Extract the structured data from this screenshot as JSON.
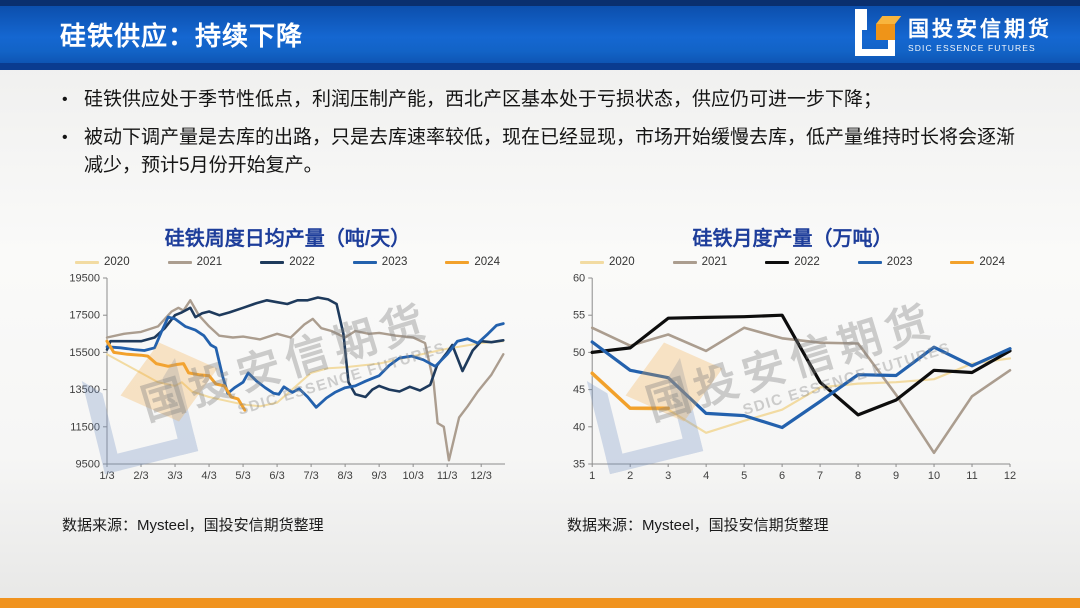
{
  "header": {
    "title": "硅铁供应：持续下降",
    "brand_cn": "国投安信期货",
    "brand_en": "SDIC ESSENCE FUTURES",
    "accent_blue": "#1567d1",
    "accent_orange": "#f0931f"
  },
  "content": {
    "bullets": [
      "硅铁供应处于季节性低点，利润压制产能，西北产区基本处于亏损状态，供应仍可进一步下降；",
      "被动下调产量是去库的出路，只是去库速率较低，现在已经显现，市场开始缓慢去库，低产量维持时长将会逐渐减少，预计5月份开始复产。"
    ],
    "bullet_glyph": "•"
  },
  "watermark": {
    "cn": "国投安信期货",
    "en": "SDIC ESSENCE FUTURES"
  },
  "chart_data": [
    {
      "type": "line",
      "title": "硅铁周度日均产量（吨/天）",
      "source": "数据来源：Mysteel，国投安信期货整理",
      "xlabel": "",
      "ylabel": "",
      "ylim": [
        9500,
        19500
      ],
      "ytick_step": 2000,
      "xlim": [
        1,
        12.7
      ],
      "xticks": [
        1,
        2,
        3,
        4,
        5,
        6,
        7,
        8,
        9,
        10,
        11,
        12
      ],
      "xtick_labels": [
        "1/3",
        "2/3",
        "3/3",
        "4/3",
        "5/3",
        "6/3",
        "7/3",
        "8/3",
        "9/3",
        "10/3",
        "11/3",
        "12/3"
      ],
      "grid": false,
      "legend_position": "top",
      "series": [
        {
          "name": "2020",
          "color": "#f2dba2",
          "width": 2,
          "points": [
            [
              1,
              15400
            ],
            [
              1.5,
              14900
            ],
            [
              2,
              14400
            ],
            [
              2.5,
              13900
            ],
            [
              3,
              13700
            ],
            [
              3.2,
              13900
            ],
            [
              3.5,
              13400
            ],
            [
              4,
              13100
            ],
            [
              4.5,
              12900
            ],
            [
              5,
              12700
            ],
            [
              5.5,
              12600
            ],
            [
              6,
              12800
            ],
            [
              6.5,
              13600
            ],
            [
              7,
              14400
            ],
            [
              7.5,
              14650
            ],
            [
              8,
              14700
            ],
            [
              8.5,
              14800
            ],
            [
              9,
              14900
            ],
            [
              9.5,
              15100
            ],
            [
              10,
              15300
            ],
            [
              10.5,
              15500
            ],
            [
              11,
              15700
            ],
            [
              11.5,
              15850
            ],
            [
              12,
              16000
            ],
            [
              12.65,
              16100
            ]
          ]
        },
        {
          "name": "2021",
          "color": "#ab9d8f",
          "width": 2.4,
          "points": [
            [
              1,
              16300
            ],
            [
              1.5,
              16500
            ],
            [
              2,
              16600
            ],
            [
              2.5,
              16900
            ],
            [
              2.9,
              17700
            ],
            [
              3.1,
              17900
            ],
            [
              3.25,
              17750
            ],
            [
              3.45,
              18300
            ],
            [
              3.7,
              17500
            ],
            [
              4,
              16900
            ],
            [
              4.3,
              16400
            ],
            [
              4.7,
              16300
            ],
            [
              5,
              16350
            ],
            [
              5.5,
              16200
            ],
            [
              6,
              16500
            ],
            [
              6.4,
              16300
            ],
            [
              6.8,
              17000
            ],
            [
              7.05,
              17300
            ],
            [
              7.3,
              16800
            ],
            [
              7.6,
              16650
            ],
            [
              8,
              16300
            ],
            [
              8.3,
              16650
            ],
            [
              8.7,
              16500
            ],
            [
              9,
              16550
            ],
            [
              9.5,
              16400
            ],
            [
              10,
              16300
            ],
            [
              10.35,
              16000
            ],
            [
              10.6,
              13900
            ],
            [
              10.72,
              11700
            ],
            [
              10.9,
              11500
            ],
            [
              11.05,
              9700
            ],
            [
              11.35,
              12000
            ],
            [
              11.6,
              12600
            ],
            [
              11.9,
              13400
            ],
            [
              12.3,
              14300
            ],
            [
              12.65,
              15400
            ]
          ]
        },
        {
          "name": "2022",
          "color": "#1e3a5c",
          "width": 2.6,
          "points": [
            [
              1,
              15650
            ],
            [
              1.1,
              16100
            ],
            [
              1.6,
              16100
            ],
            [
              2,
              16100
            ],
            [
              2.4,
              16300
            ],
            [
              2.7,
              16800
            ],
            [
              3,
              17500
            ],
            [
              3.2,
              17650
            ],
            [
              3.45,
              17900
            ],
            [
              3.6,
              17400
            ],
            [
              3.8,
              17600
            ],
            [
              4,
              17700
            ],
            [
              4.3,
              17500
            ],
            [
              4.6,
              17650
            ],
            [
              5,
              17900
            ],
            [
              5.4,
              18150
            ],
            [
              5.7,
              18300
            ],
            [
              6,
              18200
            ],
            [
              6.3,
              18100
            ],
            [
              6.6,
              18300
            ],
            [
              6.9,
              18300
            ],
            [
              7.2,
              18450
            ],
            [
              7.5,
              18350
            ],
            [
              7.75,
              18100
            ],
            [
              7.95,
              16500
            ],
            [
              8.1,
              13900
            ],
            [
              8.3,
              13250
            ],
            [
              8.6,
              13100
            ],
            [
              8.8,
              13500
            ],
            [
              9,
              13700
            ],
            [
              9.3,
              13500
            ],
            [
              9.6,
              13400
            ],
            [
              9.9,
              13650
            ],
            [
              10.2,
              13450
            ],
            [
              10.5,
              13750
            ],
            [
              10.7,
              14800
            ],
            [
              11,
              15500
            ],
            [
              11.15,
              15900
            ],
            [
              11.45,
              14500
            ],
            [
              11.75,
              15600
            ],
            [
              12,
              16100
            ],
            [
              12.3,
              16050
            ],
            [
              12.65,
              16150
            ]
          ]
        },
        {
          "name": "2023",
          "color": "#2361ad",
          "width": 2.8,
          "points": [
            [
              1,
              15800
            ],
            [
              1.4,
              15750
            ],
            [
              1.8,
              15650
            ],
            [
              2.1,
              15600
            ],
            [
              2.4,
              15750
            ],
            [
              2.6,
              16600
            ],
            [
              2.8,
              17400
            ],
            [
              3,
              17300
            ],
            [
              3.3,
              16900
            ],
            [
              3.6,
              16700
            ],
            [
              3.85,
              16400
            ],
            [
              4.05,
              15900
            ],
            [
              4.2,
              15750
            ],
            [
              4.4,
              14200
            ],
            [
              4.55,
              13300
            ],
            [
              4.75,
              13600
            ],
            [
              5,
              13900
            ],
            [
              5.15,
              14400
            ],
            [
              5.4,
              13950
            ],
            [
              5.65,
              13600
            ],
            [
              5.9,
              13300
            ],
            [
              6.05,
              13250
            ],
            [
              6.2,
              13650
            ],
            [
              6.45,
              13350
            ],
            [
              6.65,
              13550
            ],
            [
              6.9,
              13100
            ],
            [
              7.15,
              12550
            ],
            [
              7.45,
              13050
            ],
            [
              7.7,
              13350
            ],
            [
              8,
              13600
            ],
            [
              8.3,
              13700
            ],
            [
              8.6,
              13950
            ],
            [
              9,
              14250
            ],
            [
              9.3,
              14800
            ],
            [
              9.6,
              15200
            ],
            [
              9.95,
              15300
            ],
            [
              10.3,
              15100
            ],
            [
              10.65,
              14750
            ],
            [
              11,
              15400
            ],
            [
              11.3,
              16100
            ],
            [
              11.6,
              16230
            ],
            [
              11.9,
              16000
            ],
            [
              12.2,
              16500
            ],
            [
              12.45,
              16950
            ],
            [
              12.65,
              17050
            ]
          ]
        },
        {
          "name": "2024",
          "color": "#f2a12b",
          "width": 3,
          "points": [
            [
              1,
              16100
            ],
            [
              1.2,
              15500
            ],
            [
              1.6,
              15400
            ],
            [
              2,
              15350
            ],
            [
              2.2,
              15300
            ],
            [
              2.45,
              14900
            ],
            [
              2.8,
              14750
            ],
            [
              3.05,
              14850
            ],
            [
              3.25,
              14900
            ],
            [
              3.4,
              14400
            ],
            [
              3.7,
              14300
            ],
            [
              4,
              14250
            ],
            [
              4.2,
              13800
            ],
            [
              4.45,
              13700
            ],
            [
              4.65,
              13100
            ],
            [
              4.85,
              13000
            ],
            [
              5.05,
              12400
            ]
          ]
        }
      ]
    },
    {
      "type": "line",
      "title": "硅铁月度产量（万吨）",
      "source": "数据来源：Mysteel，国投安信期货整理",
      "xlabel": "",
      "ylabel": "",
      "ylim": [
        35,
        60
      ],
      "ytick_step": 5,
      "xlim": [
        1,
        12
      ],
      "xticks": [
        1,
        2,
        3,
        4,
        5,
        6,
        7,
        8,
        9,
        10,
        11,
        12
      ],
      "xtick_labels": [
        "1",
        "2",
        "3",
        "4",
        "5",
        "6",
        "7",
        "8",
        "9",
        "10",
        "11",
        "12"
      ],
      "grid": false,
      "legend_position": "top",
      "series": [
        {
          "name": "2020",
          "color": "#f2dba2",
          "width": 2.2,
          "values": [
            47.0,
            42.4,
            42.3,
            39.2,
            40.8,
            42.3,
            45.3,
            45.8,
            46.0,
            46.4,
            48.5,
            49.2
          ]
        },
        {
          "name": "2021",
          "color": "#ab9d8f",
          "width": 2.6,
          "values": [
            53.3,
            50.9,
            52.4,
            50.2,
            53.3,
            51.9,
            51.3,
            51.2,
            44.3,
            36.5,
            44.1,
            47.6
          ]
        },
        {
          "name": "2022",
          "color": "#0d0d0d",
          "width": 3.2,
          "values": [
            50.0,
            50.6,
            54.6,
            54.7,
            54.8,
            55.0,
            46.0,
            41.6,
            43.6,
            47.6,
            47.3,
            50.2
          ]
        },
        {
          "name": "2023",
          "color": "#2361ad",
          "width": 3.2,
          "values": [
            51.4,
            47.6,
            46.6,
            41.8,
            41.5,
            39.9,
            43.4,
            47.0,
            46.9,
            50.7,
            48.2,
            50.5
          ]
        },
        {
          "name": "2024",
          "color": "#f2a12b",
          "width": 3.4,
          "values": [
            47.2,
            42.5,
            42.5
          ]
        }
      ]
    }
  ]
}
